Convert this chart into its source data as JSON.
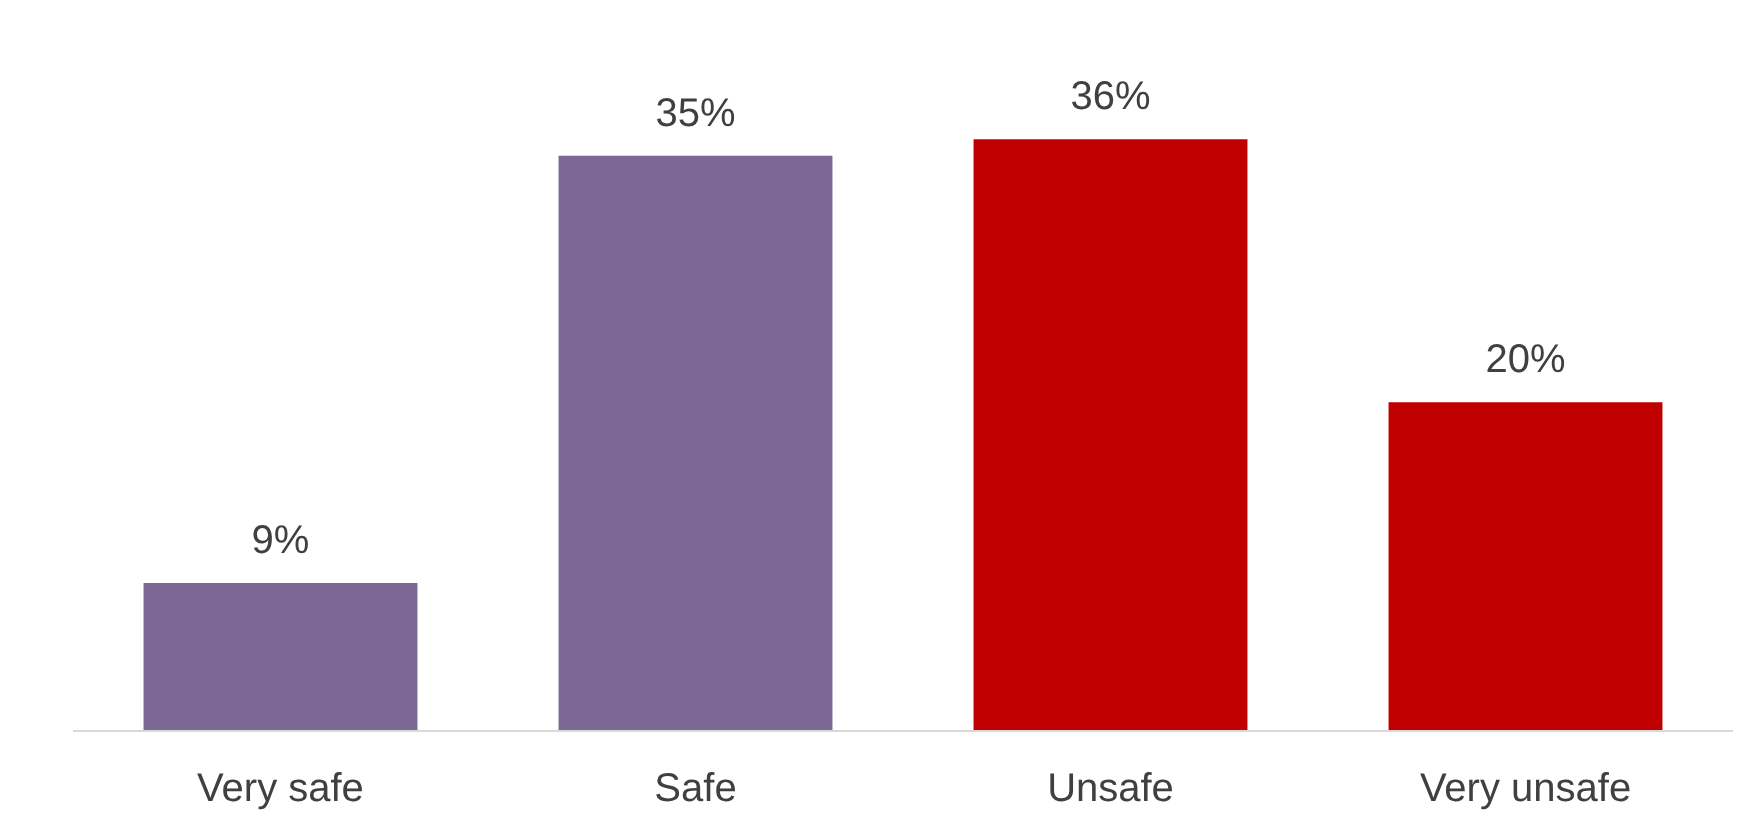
{
  "chart_data": {
    "type": "bar",
    "categories": [
      "Very safe",
      "Safe",
      "Unsafe",
      "Very unsafe"
    ],
    "values": [
      9,
      35,
      36,
      20
    ],
    "colors": [
      "#7b6895",
      "#7b6895",
      "#c00000",
      "#c00000"
    ],
    "value_labels": [
      "9%",
      "35%",
      "36%",
      "20%"
    ]
  }
}
